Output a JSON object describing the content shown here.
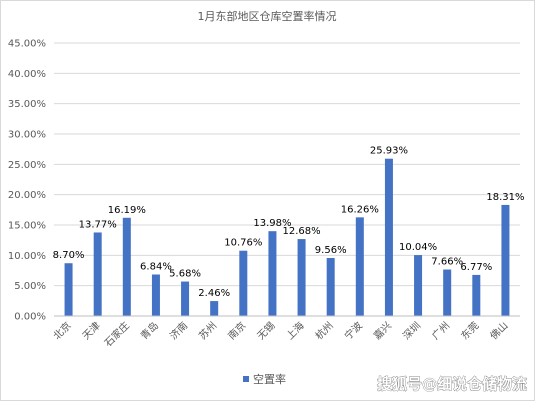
{
  "chart_data": {
    "type": "bar",
    "title": "1月东部地区仓库空置率情况",
    "categories": [
      "北京",
      "天津",
      "石家庄",
      "青岛",
      "济南",
      "苏州",
      "南京",
      "无锡",
      "上海",
      "杭州",
      "宁波",
      "嘉兴",
      "深圳",
      "广州",
      "东莞",
      "佛山"
    ],
    "series": [
      {
        "name": "空置率",
        "values": [
          8.7,
          13.77,
          16.19,
          6.84,
          5.68,
          2.46,
          10.76,
          13.98,
          12.68,
          9.56,
          16.26,
          25.93,
          10.04,
          7.66,
          6.77,
          18.31
        ],
        "labels": [
          "8.70%",
          "13.77%",
          "16.19%",
          "6.84%",
          "5.68%",
          "2.46%",
          "10.76%",
          "13.98%",
          "12.68%",
          "9.56%",
          "16.26%",
          "25.93%",
          "10.04%",
          "7.66%",
          "6.77%",
          "18.31%"
        ]
      }
    ],
    "ylim": [
      0,
      45
    ],
    "ytick_labels": [
      "0.00%",
      "5.00%",
      "10.00%",
      "15.00%",
      "20.00%",
      "25.00%",
      "30.00%",
      "35.00%",
      "40.00%",
      "45.00%"
    ],
    "grid": true,
    "legend_position": "bottom",
    "bar_color": "#4472c4"
  },
  "watermark": "搜狐号@细说仓储物流"
}
